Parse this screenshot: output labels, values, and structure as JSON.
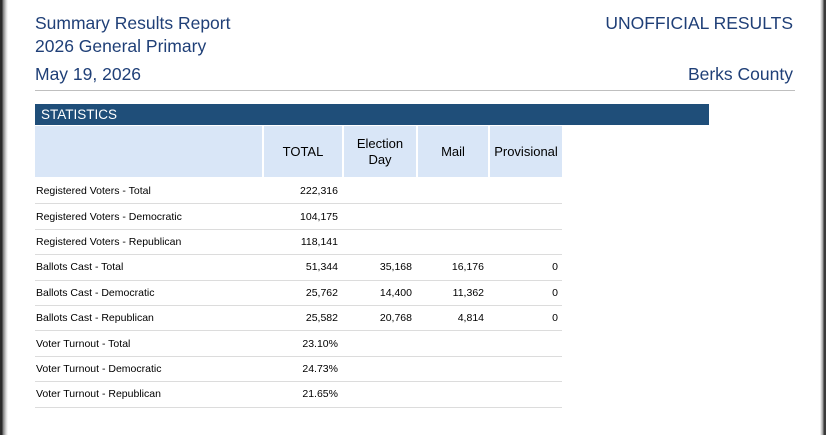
{
  "header": {
    "report_title": "Summary Results Report",
    "election": "2026 General Primary",
    "date": "May 19, 2026",
    "status": "UNOFFICIAL RESULTS",
    "county": "Berks County"
  },
  "section": {
    "title": "STATISTICS"
  },
  "table": {
    "columns": [
      "",
      "TOTAL",
      "Election Day",
      "Mail",
      "Provisional"
    ],
    "rows": [
      [
        "Registered Voters - Total",
        "222,316",
        "",
        "",
        ""
      ],
      [
        "Registered Voters - Democratic",
        "104,175",
        "",
        "",
        ""
      ],
      [
        "Registered Voters - Republican",
        "118,141",
        "",
        "",
        ""
      ],
      [
        "Ballots Cast - Total",
        "51,344",
        "35,168",
        "16,176",
        "0"
      ],
      [
        "Ballots Cast - Democratic",
        "25,762",
        "14,400",
        "11,362",
        "0"
      ],
      [
        "Ballots Cast - Republican",
        "25,582",
        "20,768",
        "4,814",
        "0"
      ],
      [
        "Voter Turnout - Total",
        "23.10%",
        "",
        "",
        ""
      ],
      [
        "Voter Turnout - Democratic",
        "24.73%",
        "",
        "",
        ""
      ],
      [
        "Voter Turnout - Republican",
        "21.65%",
        "",
        "",
        ""
      ]
    ]
  }
}
